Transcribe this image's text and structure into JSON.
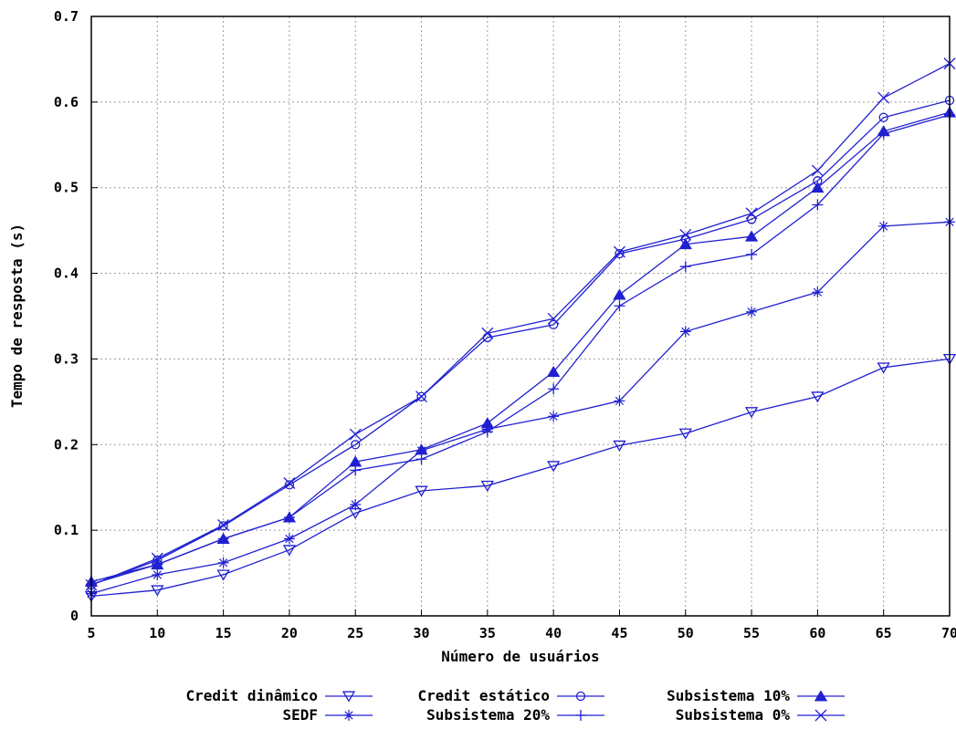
{
  "chart_data": {
    "type": "line",
    "title": "",
    "xlabel": "Número de usuários",
    "ylabel": "Tempo de resposta (s)",
    "x": [
      5,
      10,
      15,
      20,
      25,
      30,
      35,
      40,
      45,
      50,
      55,
      60,
      65,
      70
    ],
    "xlim": [
      5,
      70
    ],
    "ylim": [
      0,
      0.7
    ],
    "x_ticks": [
      "5",
      "10",
      "15",
      "20",
      "25",
      "30",
      "35",
      "40",
      "45",
      "50",
      "55",
      "60",
      "65",
      "70"
    ],
    "y_ticks": [
      {
        "value": 0,
        "label": "0"
      },
      {
        "value": 0.1,
        "label": "0.1"
      },
      {
        "value": 0.2,
        "label": "0.2"
      },
      {
        "value": 0.3,
        "label": "0.3"
      },
      {
        "value": 0.4,
        "label": "0.4"
      },
      {
        "value": 0.5,
        "label": "0.5"
      },
      {
        "value": 0.6,
        "label": "0.6"
      },
      {
        "value": 0.7,
        "label": "0.7"
      }
    ],
    "grid": true,
    "legend_placement": "bottom",
    "line_color": "#2020d0",
    "series": [
      {
        "name": "Credit dinâmico",
        "marker": "triangle-down",
        "values": [
          0.023,
          0.03,
          0.048,
          0.077,
          0.12,
          0.146,
          0.152,
          0.175,
          0.199,
          0.213,
          0.238,
          0.256,
          0.29,
          0.3
        ]
      },
      {
        "name": "Credit estático",
        "marker": "circle",
        "values": [
          0.036,
          0.065,
          0.105,
          0.153,
          0.2,
          0.256,
          0.325,
          0.34,
          0.423,
          0.44,
          0.463,
          0.508,
          0.582,
          0.602
        ]
      },
      {
        "name": "Subsistema 10%",
        "marker": "triangle-up",
        "values": [
          0.04,
          0.06,
          0.09,
          0.115,
          0.18,
          0.194,
          0.225,
          0.285,
          0.375,
          0.434,
          0.443,
          0.5,
          0.566,
          0.588
        ]
      },
      {
        "name": "SEDF",
        "marker": "asterisk",
        "values": [
          0.026,
          0.048,
          0.062,
          0.09,
          0.13,
          0.193,
          0.218,
          0.233,
          0.251,
          0.332,
          0.355,
          0.378,
          0.455,
          0.46
        ]
      },
      {
        "name": "Subsistema 20%",
        "marker": "plus",
        "values": [
          0.037,
          0.06,
          0.09,
          0.115,
          0.17,
          0.183,
          0.215,
          0.265,
          0.362,
          0.408,
          0.422,
          0.48,
          0.563,
          0.585
        ]
      },
      {
        "name": "Subsistema 0%",
        "marker": "x",
        "values": [
          0.036,
          0.067,
          0.106,
          0.155,
          0.212,
          0.256,
          0.33,
          0.347,
          0.425,
          0.445,
          0.47,
          0.52,
          0.605,
          0.645
        ]
      }
    ]
  }
}
